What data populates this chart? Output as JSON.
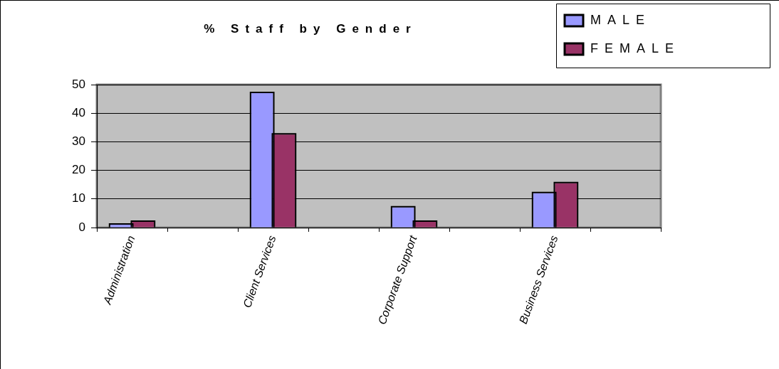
{
  "chart_data": {
    "type": "bar",
    "title": "% Staff by Gender",
    "categories": [
      "Administration",
      null,
      "Client Services",
      null,
      "Corporate Support",
      null,
      "Business Services",
      null
    ],
    "series": [
      {
        "name": "MALE",
        "color": "#9999ff",
        "values": [
          1,
          null,
          47,
          null,
          7,
          null,
          12,
          null
        ]
      },
      {
        "name": "FEMALE",
        "color": "#993366",
        "values": [
          2,
          null,
          32.5,
          null,
          2,
          null,
          15.5,
          null
        ]
      }
    ],
    "ylim": [
      0,
      50
    ],
    "yticks": [
      0,
      10,
      20,
      30,
      40,
      50
    ],
    "grid": "y",
    "legend": "top right"
  }
}
